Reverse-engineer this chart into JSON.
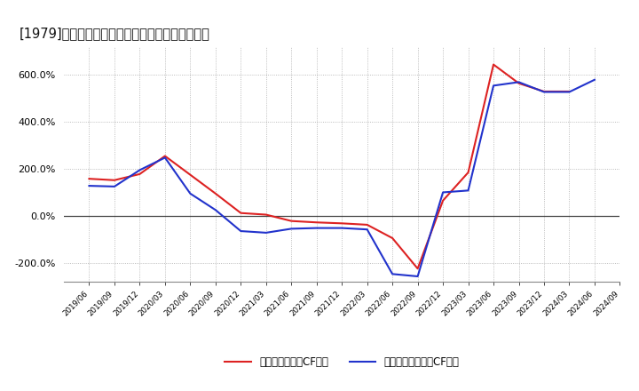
{
  "title": "[1979]　有利子負債キャッシュフロー比率の推移",
  "legend_red": "有利子負債営業CF比率",
  "legend_blue": "有利子負債フリーCF比率",
  "ylim": [
    -280,
    720
  ],
  "yticks": [
    -200,
    0,
    200,
    400,
    600
  ],
  "background_color": "#ffffff",
  "plot_bg_color": "#ffffff",
  "grid_color": "#aaaaaa",
  "color_red": "#dd2222",
  "color_blue": "#2233cc",
  "dates": [
    "2019/06",
    "2019/09",
    "2019/12",
    "2020/03",
    "2020/06",
    "2020/09",
    "2020/12",
    "2021/03",
    "2021/06",
    "2021/09",
    "2021/12",
    "2022/03",
    "2022/06",
    "2022/09",
    "2022/12",
    "2023/03",
    "2023/06",
    "2023/09",
    "2023/12",
    "2024/03",
    "2024/06",
    "2024/09"
  ],
  "red_values": [
    158,
    152,
    178,
    255,
    175,
    95,
    12,
    5,
    -22,
    -28,
    -32,
    -38,
    -95,
    -225,
    65,
    185,
    645,
    565,
    530,
    530,
    null,
    null
  ],
  "blue_values": [
    128,
    125,
    195,
    248,
    95,
    25,
    -65,
    -72,
    -55,
    -52,
    -52,
    -58,
    -248,
    -258,
    100,
    108,
    555,
    570,
    528,
    528,
    580,
    null
  ]
}
